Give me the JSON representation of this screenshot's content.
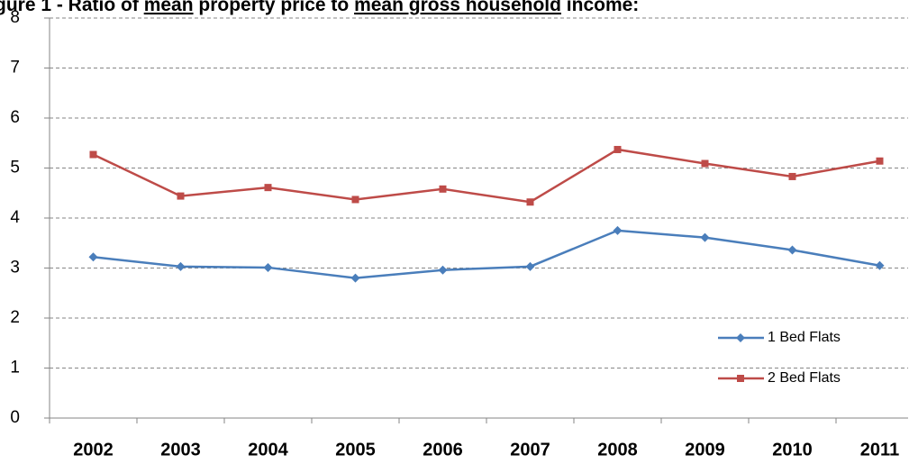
{
  "chart_data": {
    "type": "line",
    "title_parts": [
      {
        "text": "gure 1 - Ratio of ",
        "underline": false
      },
      {
        "text": "mean",
        "underline": true
      },
      {
        "text": " property price to ",
        "underline": false
      },
      {
        "text": "mean gross household",
        "underline": true
      },
      {
        "text": " income: ",
        "underline": false
      }
    ],
    "categories": [
      "2002",
      "2003",
      "2004",
      "2005",
      "2006",
      "2007",
      "2008",
      "2009",
      "2010",
      "2011"
    ],
    "series": [
      {
        "name": "1 Bed Flats",
        "color": "#4a7ebb",
        "marker": "diamond",
        "values": [
          3.22,
          3.03,
          3.01,
          2.8,
          2.96,
          3.03,
          3.75,
          3.61,
          3.36,
          3.05
        ]
      },
      {
        "name": "2 Bed Flats",
        "color": "#be4b48",
        "marker": "square",
        "values": [
          5.27,
          4.44,
          4.61,
          4.37,
          4.58,
          4.32,
          5.37,
          5.09,
          4.83,
          5.14
        ]
      }
    ],
    "ylim": [
      0,
      8
    ],
    "yticks": [
      0,
      1,
      2,
      3,
      4,
      5,
      6,
      7,
      8
    ],
    "grid": true,
    "legend": "lower-right"
  }
}
